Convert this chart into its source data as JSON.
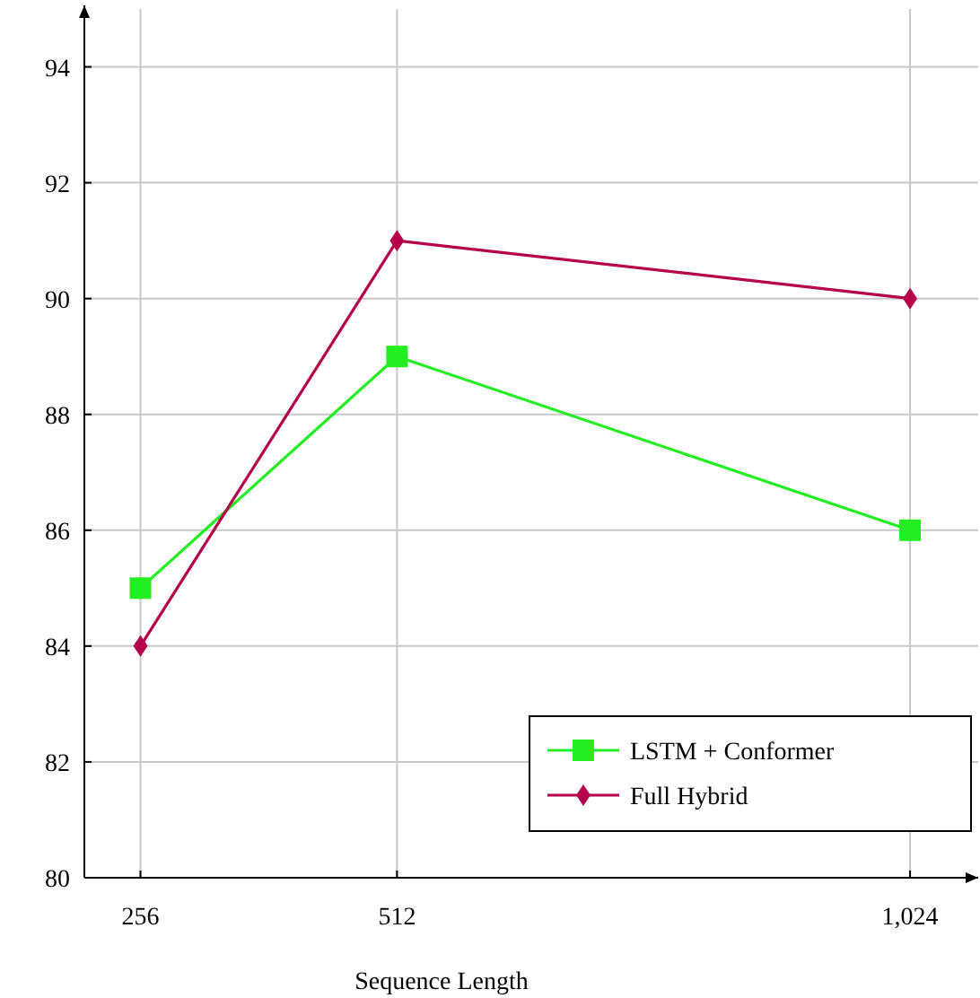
{
  "chart_data": {
    "type": "line",
    "xlabel": "Sequence Length",
    "x": [
      256,
      512,
      1024
    ],
    "series": [
      {
        "name": "LSTM + Conformer",
        "color": "#22ee22",
        "marker": "square",
        "values": [
          85,
          89,
          86
        ]
      },
      {
        "name": "Full Hybrid",
        "color": "#b5004a",
        "marker": "diamond",
        "values": [
          84,
          91,
          90
        ]
      }
    ],
    "xlim": [
      200,
      1092
    ],
    "xticks": [
      256,
      512,
      {
        "value": 1024,
        "label": "1,024"
      }
    ],
    "ylim": [
      80,
      95
    ],
    "yticks": [
      80,
      82,
      84,
      86,
      88,
      90,
      92,
      94
    ],
    "grid": true,
    "legend": "bottom right",
    "line_style": "solid"
  }
}
